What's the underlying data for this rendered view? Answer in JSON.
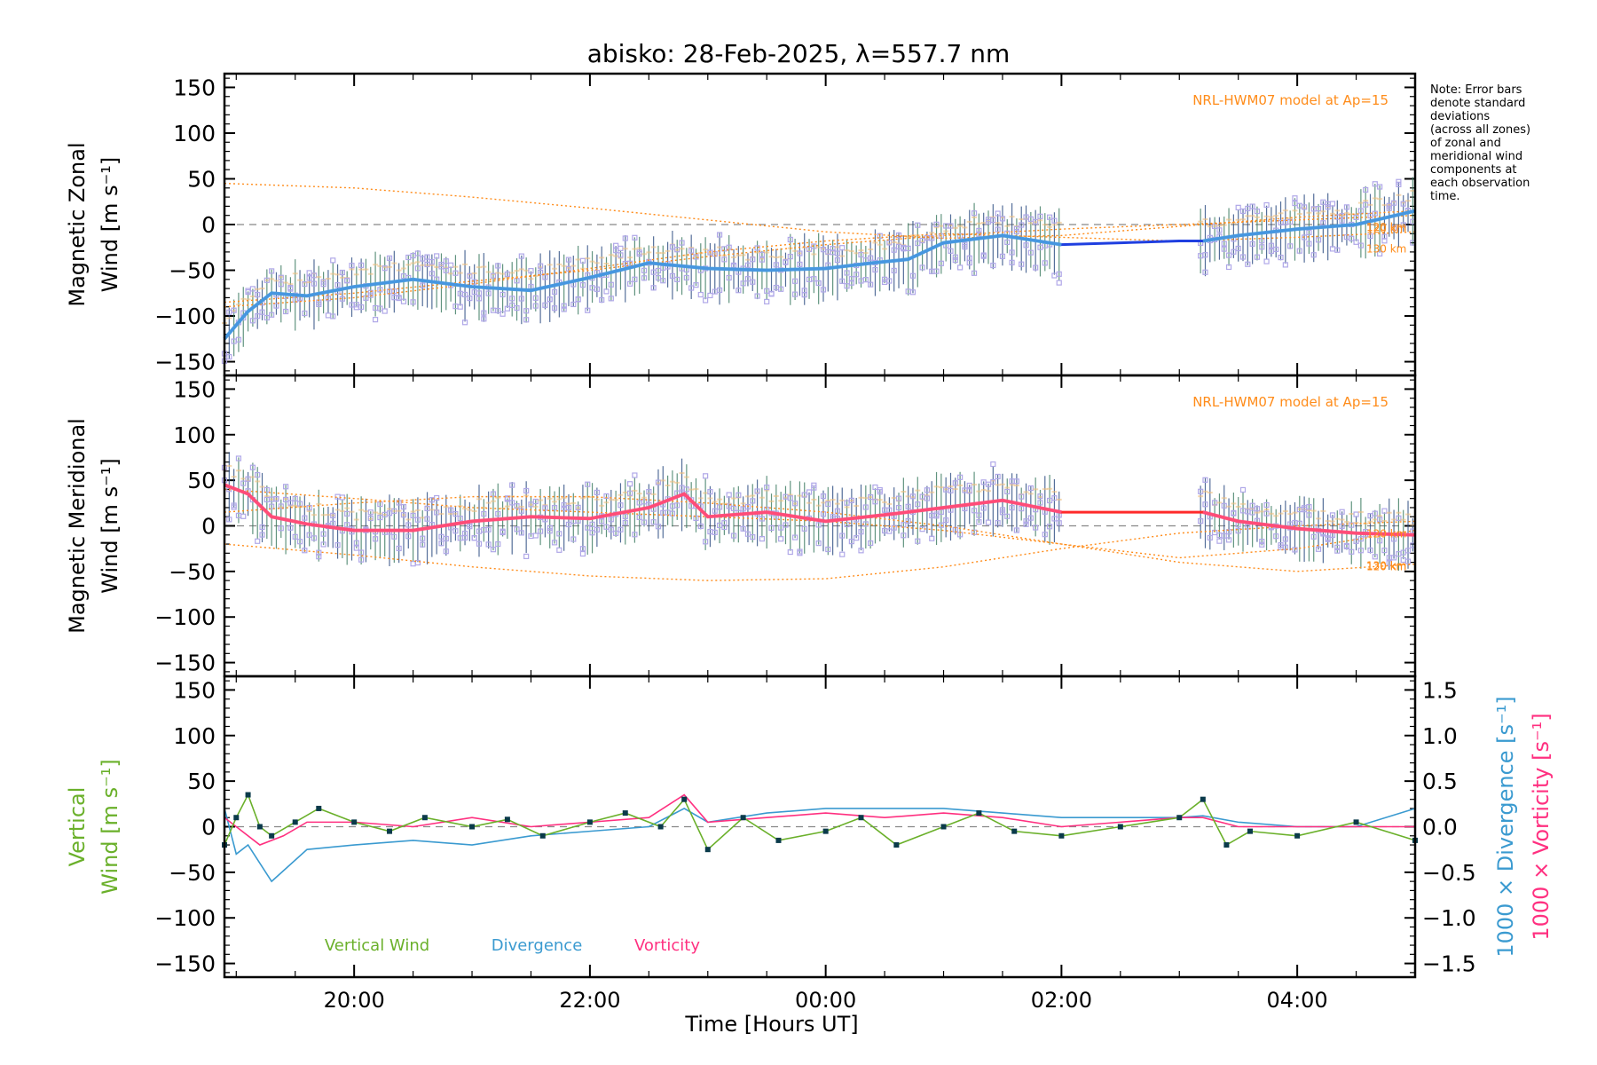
{
  "title": "abisko: 28-Feb-2025, λ=557.7 nm",
  "note": [
    "Note: Error bars",
    "denote standard",
    "deviations",
    "(across all zones)",
    "of zonal and",
    "meridional wind",
    "components at",
    "each observation",
    "time."
  ],
  "xaxis": {
    "label": "Time [Hours UT]",
    "ticks": [
      {
        "value": 20,
        "label": "20:00"
      },
      {
        "value": 22,
        "label": "22:00"
      },
      {
        "value": 24,
        "label": "00:00"
      },
      {
        "value": 26,
        "label": "02:00"
      },
      {
        "value": 28,
        "label": "04:00"
      }
    ]
  },
  "colors": {
    "zonal_line": "#1f3fe0",
    "zonal_smooth": "#4aa0e0",
    "meridional_line": "#ff2a2a",
    "meridional_smooth": "#ff5080",
    "model": "#ff8c1a",
    "scatter": "#b0a8e8",
    "vertical": "#6ab02a",
    "divergence": "#3a9ad0",
    "vorticity": "#ff3080",
    "points": "#0a3a4a",
    "zero_line": "#888888"
  },
  "chart_data": [
    {
      "type": "line",
      "panel": "zonal",
      "ylabel_top": "Magnetic Zonal",
      "ylabel_bottom": "Wind [m s⁻¹]",
      "ylim": [
        -165,
        165
      ],
      "yticks": [
        150,
        100,
        50,
        0,
        -50,
        -100,
        -150
      ],
      "xlim": [
        18.9,
        29.0
      ],
      "model_label": "NRL-HWM07 model at Ap=15",
      "model_heights": [
        "120 km",
        "120 km",
        "130 km"
      ],
      "series": [
        {
          "name": "Zonal wind",
          "x": [
            18.9,
            19.1,
            19.3,
            19.6,
            20.0,
            20.5,
            21.0,
            21.5,
            22.0,
            22.5,
            23.0,
            23.5,
            24.0,
            24.4,
            24.7,
            25.0,
            25.5,
            26.0,
            26.5,
            27.0,
            27.2,
            27.5,
            28.0,
            28.5,
            28.9,
            29.0
          ],
          "y": [
            -125,
            -95,
            -75,
            -78,
            -68,
            -60,
            -68,
            -72,
            -58,
            -42,
            -48,
            -50,
            -48,
            -42,
            -38,
            -20,
            -12,
            -22,
            -20,
            -18,
            -18,
            -12,
            -5,
            0,
            12,
            15
          ]
        },
        {
          "name": "Model 120 km A",
          "x": [
            18.9,
            20,
            21,
            22,
            23,
            24,
            25,
            26,
            27,
            28,
            29
          ],
          "y": [
            45,
            40,
            30,
            18,
            5,
            -8,
            -15,
            -12,
            -2,
            8,
            15
          ]
        },
        {
          "name": "Model 120 km B",
          "x": [
            18.9,
            20,
            21,
            22,
            23,
            24,
            25,
            26,
            27,
            28,
            29
          ],
          "y": [
            -85,
            -75,
            -62,
            -50,
            -35,
            -22,
            -12,
            -5,
            0,
            5,
            10
          ]
        },
        {
          "name": "Model 130 km",
          "x": [
            18.9,
            20,
            21,
            22,
            23,
            24,
            25,
            26,
            27,
            28,
            29
          ],
          "y": [
            -90,
            -80,
            -65,
            -48,
            -30,
            -18,
            -10,
            -14,
            -18,
            -14,
            -8
          ]
        }
      ]
    },
    {
      "type": "line",
      "panel": "meridional",
      "ylabel_top": "Magnetic Meridional",
      "ylabel_bottom": "Wind [m s⁻¹]",
      "ylim": [
        -165,
        165
      ],
      "yticks": [
        150,
        100,
        50,
        0,
        -50,
        -100,
        -150
      ],
      "xlim": [
        18.9,
        29.0
      ],
      "model_label": "NRL-HWM07 model at Ap=15",
      "model_heights": [
        "120 km",
        "120 km",
        "130 km"
      ],
      "series": [
        {
          "name": "Meridional wind",
          "x": [
            18.9,
            19.1,
            19.3,
            19.6,
            20.0,
            20.5,
            21.0,
            21.5,
            22.0,
            22.5,
            22.8,
            23.0,
            23.5,
            24.0,
            24.5,
            25.0,
            25.5,
            26.0,
            26.5,
            27.0,
            27.2,
            27.5,
            28.0,
            28.5,
            29.0
          ],
          "y": [
            45,
            35,
            10,
            2,
            -5,
            -5,
            5,
            10,
            8,
            20,
            35,
            10,
            15,
            5,
            12,
            20,
            28,
            15,
            15,
            15,
            15,
            5,
            -3,
            -8,
            -10
          ]
        },
        {
          "name": "Model 120 km A",
          "x": [
            18.9,
            20,
            21,
            22,
            23,
            24,
            25,
            26,
            27,
            28,
            29
          ],
          "y": [
            -20,
            -32,
            -45,
            -55,
            -60,
            -58,
            -45,
            -25,
            -8,
            0,
            5
          ]
        },
        {
          "name": "Model 120 km B",
          "x": [
            18.9,
            20,
            21,
            22,
            23,
            24,
            25,
            26,
            27,
            28,
            29
          ],
          "y": [
            15,
            25,
            32,
            32,
            25,
            15,
            0,
            -20,
            -40,
            -50,
            -42
          ]
        },
        {
          "name": "Model 130 km",
          "x": [
            18.9,
            20,
            21,
            22,
            23,
            24,
            25,
            26,
            27,
            28,
            29
          ],
          "y": [
            40,
            30,
            20,
            15,
            10,
            5,
            -5,
            -20,
            -35,
            -25,
            -5
          ]
        }
      ]
    },
    {
      "type": "line",
      "panel": "vertical",
      "ylabel_top": "Vertical",
      "ylabel_bottom": "Wind [m s⁻¹]",
      "ylim": [
        -165,
        165
      ],
      "yticks": [
        150,
        100,
        50,
        0,
        -50,
        -100,
        -150
      ],
      "right_ylim": [
        -1.65,
        1.65
      ],
      "right_yticks": [
        1.5,
        1.0,
        0.5,
        0.0,
        -0.5,
        -1.0,
        -1.5
      ],
      "right_ylabel_div": "1000 × Divergence [s⁻¹]",
      "right_ylabel_vort": "1000 × Vorticity [s⁻¹]",
      "xlim": [
        18.9,
        29.0
      ],
      "legend": [
        "Vertical Wind",
        "Divergence",
        "Vorticity"
      ],
      "series": [
        {
          "name": "Vertical Wind",
          "x": [
            18.9,
            19.0,
            19.1,
            19.2,
            19.3,
            19.5,
            19.7,
            20.0,
            20.3,
            20.6,
            21.0,
            21.3,
            21.6,
            22.0,
            22.3,
            22.6,
            22.8,
            23.0,
            23.3,
            23.6,
            24.0,
            24.3,
            24.6,
            25.0,
            25.3,
            25.6,
            26.0,
            26.5,
            27.0,
            27.2,
            27.4,
            27.6,
            28.0,
            28.5,
            29.0
          ],
          "y": [
            -20,
            10,
            35,
            0,
            -10,
            5,
            20,
            5,
            -5,
            10,
            0,
            8,
            -10,
            5,
            15,
            0,
            30,
            -25,
            10,
            -15,
            -5,
            10,
            -20,
            0,
            15,
            -5,
            -10,
            0,
            10,
            30,
            -20,
            -5,
            -10,
            5,
            -15
          ]
        },
        {
          "name": "Divergence",
          "x": [
            18.9,
            19.0,
            19.1,
            19.3,
            19.6,
            20.0,
            20.5,
            21.0,
            21.5,
            22.0,
            22.5,
            22.8,
            23.0,
            23.5,
            24.0,
            24.5,
            25.0,
            25.5,
            26.0,
            26.5,
            27.0,
            27.2,
            27.5,
            28.0,
            28.5,
            29.0
          ],
          "y": [
            0.2,
            -0.3,
            -0.2,
            -0.6,
            -0.25,
            -0.2,
            -0.15,
            -0.2,
            -0.1,
            -0.05,
            0.0,
            0.2,
            0.05,
            0.15,
            0.2,
            0.2,
            0.2,
            0.15,
            0.1,
            0.1,
            0.1,
            0.12,
            0.05,
            0.0,
            0.0,
            0.2
          ]
        },
        {
          "name": "Vorticity",
          "x": [
            18.9,
            19.0,
            19.2,
            19.4,
            19.6,
            20.0,
            20.5,
            21.0,
            21.5,
            22.0,
            22.5,
            22.8,
            23.0,
            23.5,
            24.0,
            24.5,
            25.0,
            25.5,
            26.0,
            26.5,
            27.0,
            27.2,
            27.5,
            28.0,
            28.5,
            29.0
          ],
          "y": [
            0.1,
            0.0,
            -0.2,
            -0.1,
            0.05,
            0.05,
            0.0,
            0.1,
            0.0,
            0.05,
            0.1,
            0.35,
            0.05,
            0.1,
            0.15,
            0.1,
            0.15,
            0.1,
            0.0,
            0.05,
            0.1,
            0.1,
            0.0,
            0.0,
            0.0,
            0.0
          ]
        }
      ]
    }
  ]
}
